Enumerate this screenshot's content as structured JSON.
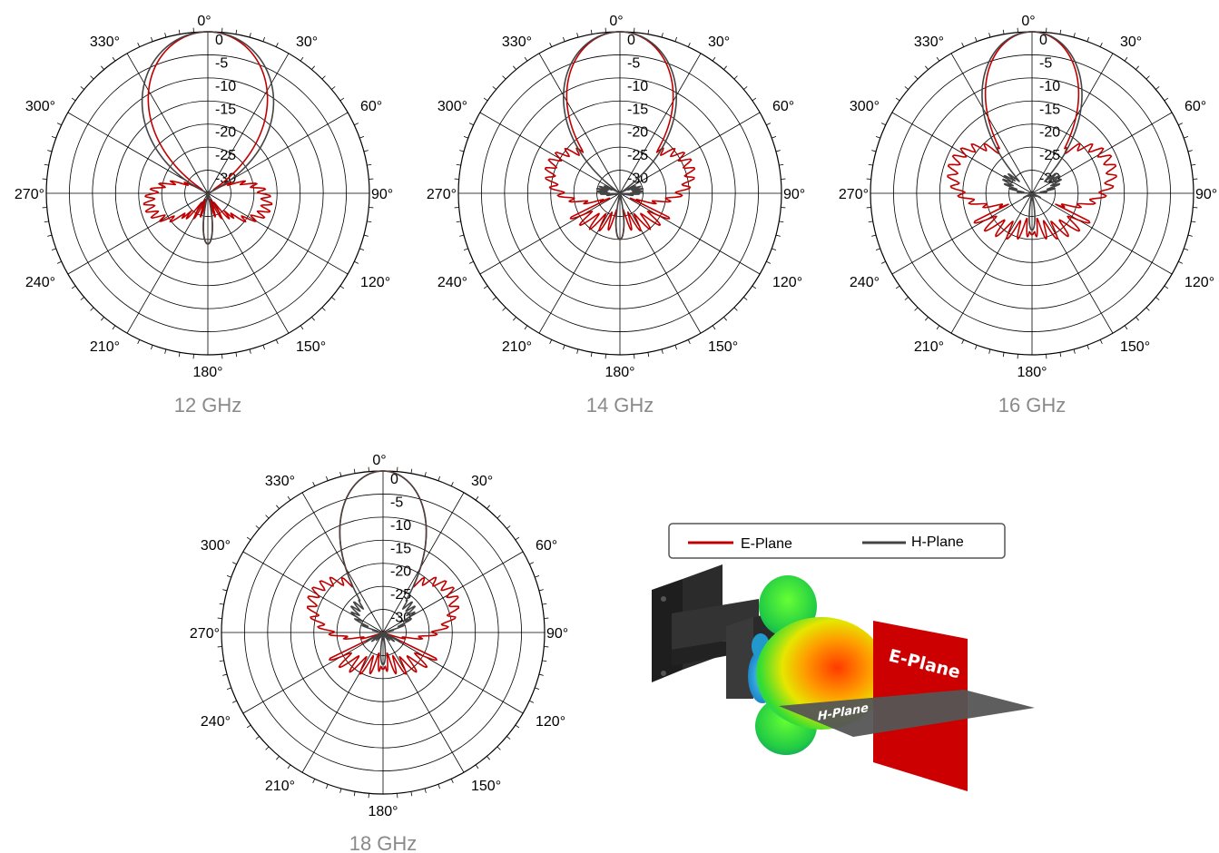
{
  "chart_data": [
    {
      "type": "polar",
      "caption": "12 GHz",
      "angle_labels": [
        "0°",
        "30°",
        "60°",
        "90°",
        "120°",
        "150°",
        "180°",
        "210°",
        "240°",
        "270°",
        "300°",
        "330°"
      ],
      "radial_ticks": [
        "0",
        "-5",
        "-10",
        "-15",
        "-20",
        "-25",
        "-30"
      ],
      "r_range_db": [
        -35,
        0
      ],
      "series": [
        {
          "name": "E-Plane",
          "color": "#c00000",
          "main_beam_3db_deg": 17,
          "sidelobe_angle_deg": 102,
          "sidelobe_db": -22,
          "back_lobe_db": -24
        },
        {
          "name": "H-Plane",
          "color": "#444444",
          "main_beam_3db_deg": 19,
          "sidelobe_angle_deg": 0,
          "sidelobe_db": -60,
          "back_lobe_db": -24
        }
      ]
    },
    {
      "type": "polar",
      "caption": "14 GHz",
      "angle_labels": [
        "0°",
        "30°",
        "60°",
        "90°",
        "120°",
        "150°",
        "180°",
        "210°",
        "240°",
        "270°",
        "300°",
        "330°"
      ],
      "radial_ticks": [
        "0",
        "-5",
        "-10",
        "-15",
        "-20",
        "-25",
        "-30"
      ],
      "r_range_db": [
        -35,
        0
      ],
      "series": [
        {
          "name": "E-Plane",
          "color": "#c00000",
          "main_beam_3db_deg": 15,
          "sidelobe_angle_deg": 68,
          "sidelobe_db": -19,
          "back_lobe_db": -25
        },
        {
          "name": "H-Plane",
          "color": "#444444",
          "main_beam_3db_deg": 16,
          "sidelobe_angle_deg": 80,
          "sidelobe_db": -31,
          "back_lobe_db": -25
        }
      ]
    },
    {
      "type": "polar",
      "caption": "16 GHz",
      "angle_labels": [
        "0°",
        "30°",
        "60°",
        "90°",
        "120°",
        "150°",
        "180°",
        "210°",
        "240°",
        "270°",
        "300°",
        "330°"
      ],
      "radial_ticks": [
        "0",
        "-5",
        "-10",
        "-15",
        "-20",
        "-25",
        "-30"
      ],
      "r_range_db": [
        -35,
        0
      ],
      "series": [
        {
          "name": "E-Plane",
          "color": "#c00000",
          "main_beam_3db_deg": 13,
          "sidelobe_angle_deg": 70,
          "sidelobe_db": -17,
          "back_lobe_db": -26
        },
        {
          "name": "H-Plane",
          "color": "#444444",
          "main_beam_3db_deg": 14,
          "sidelobe_angle_deg": 60,
          "sidelobe_db": -29,
          "back_lobe_db": -27
        }
      ]
    },
    {
      "type": "polar",
      "caption": "18 GHz",
      "angle_labels": [
        "0°",
        "30°",
        "60°",
        "90°",
        "120°",
        "150°",
        "180°",
        "210°",
        "240°",
        "270°",
        "300°",
        "330°"
      ],
      "radial_ticks": [
        "0",
        "-5",
        "-10",
        "-15",
        "-20",
        "-25",
        "-30"
      ],
      "r_range_db": [
        -35,
        0
      ],
      "series": [
        {
          "name": "E-Plane",
          "color": "#c00000",
          "main_beam_3db_deg": 12,
          "sidelobe_angle_deg": 60,
          "sidelobe_db": -18,
          "back_lobe_db": -27
        },
        {
          "name": "H-Plane",
          "color": "#444444",
          "main_beam_3db_deg": 12,
          "sidelobe_angle_deg": 45,
          "sidelobe_db": -27,
          "back_lobe_db": -28
        }
      ]
    }
  ],
  "legend": {
    "items": [
      {
        "label": "E-Plane",
        "color": "#c00000"
      },
      {
        "label": "H-Plane",
        "color": "#444444"
      }
    ]
  },
  "illustration": {
    "e_plane_label": "E-Plane",
    "h_plane_label": "H-Plane",
    "e_plane_color": "#c00000",
    "h_plane_color": "#555555"
  }
}
